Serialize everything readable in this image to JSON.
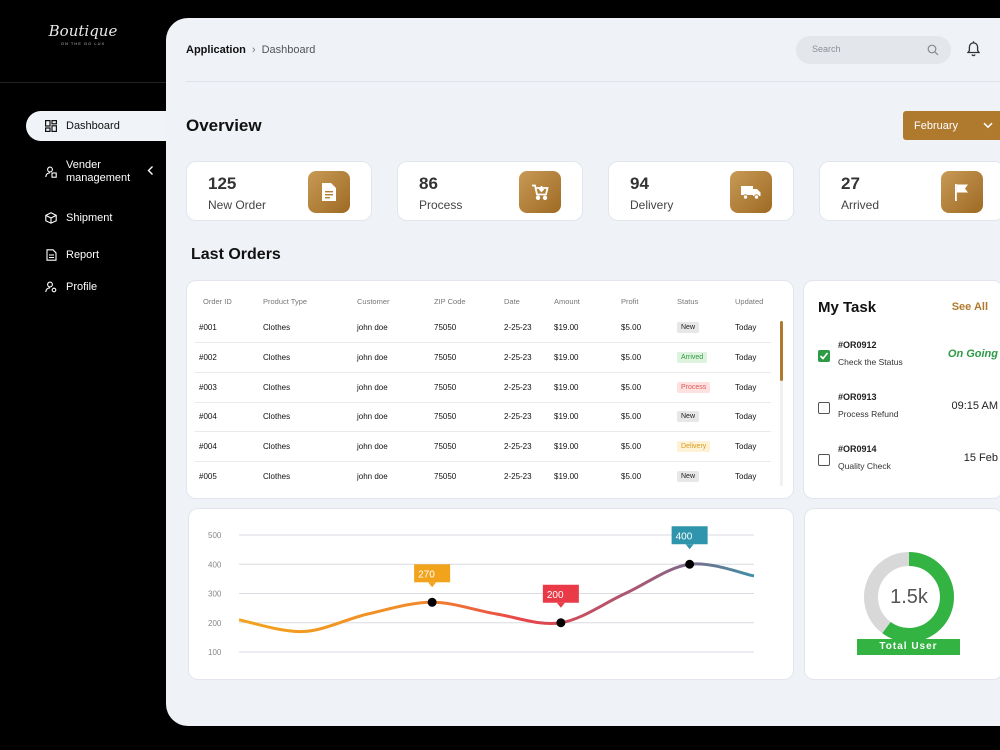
{
  "brand": {
    "name": "Boutique",
    "tagline": "ON THE GO LUX"
  },
  "sidebar": {
    "items": [
      {
        "label": "Dashboard",
        "icon": "dashboard-icon",
        "active": true
      },
      {
        "label": "Vender management",
        "icon": "vendor-icon"
      },
      {
        "label": "Shipment",
        "icon": "box-icon"
      },
      {
        "label": "Report",
        "icon": "report-icon"
      },
      {
        "label": "Profile",
        "icon": "profile-icon"
      }
    ]
  },
  "header": {
    "breadcrumb": [
      "Application",
      "Dashboard"
    ],
    "search_placeholder": "Search"
  },
  "overview": {
    "title": "Overview",
    "month": "February",
    "stats": [
      {
        "value": "125",
        "label": "New Order",
        "icon": "document-icon"
      },
      {
        "value": "86",
        "label": "Process",
        "icon": "cart-icon"
      },
      {
        "value": "94",
        "label": "Delivery",
        "icon": "truck-icon"
      },
      {
        "value": "27",
        "label": "Arrived",
        "icon": "flag-icon"
      }
    ]
  },
  "orders": {
    "title": "Last Orders",
    "columns": [
      "Order ID",
      "Product Type",
      "Customer",
      "ZIP Code",
      "Date",
      "Amount",
      "Profit",
      "Status",
      "Updated"
    ],
    "rows": [
      [
        "#001",
        "Clothes",
        "john doe",
        "75050",
        "2-25-23",
        "$19.00",
        "$5.00",
        "New",
        "Today"
      ],
      [
        "#002",
        "Clothes",
        "john doe",
        "75050",
        "2-25-23",
        "$19.00",
        "$5.00",
        "Arrived",
        "Today"
      ],
      [
        "#003",
        "Clothes",
        "john doe",
        "75050",
        "2-25-23",
        "$19.00",
        "$5.00",
        "Process",
        "Today"
      ],
      [
        "#004",
        "Clothes",
        "john doe",
        "75050",
        "2-25-23",
        "$19.00",
        "$5.00",
        "New",
        "Today"
      ],
      [
        "#004",
        "Clothes",
        "john doe",
        "75050",
        "2-25-23",
        "$19.00",
        "$5.00",
        "Delivery",
        "Today"
      ],
      [
        "#005",
        "Clothes",
        "john doe",
        "75050",
        "2-25-23",
        "$19.00",
        "$5.00",
        "New",
        "Today"
      ]
    ]
  },
  "tasks": {
    "title": "My Task",
    "see_all": "See All",
    "items": [
      {
        "id": "#OR0912",
        "desc": "Check the Status",
        "value": "On Going",
        "checked": true
      },
      {
        "id": "#OR0913",
        "desc": "Process Refund",
        "value": "09:15 AM",
        "checked": false
      },
      {
        "id": "#OR0914",
        "desc": "Quality Check",
        "value": "15 Feb",
        "checked": false
      }
    ]
  },
  "chart_data": {
    "type": "line",
    "y_ticks": [
      500,
      400,
      300,
      200,
      100
    ],
    "ylim": [
      100,
      500
    ],
    "x": [
      0,
      1,
      2,
      3,
      4,
      5,
      6,
      7,
      8
    ],
    "values": [
      210,
      170,
      230,
      270,
      230,
      200,
      300,
      400,
      360
    ],
    "annotations": [
      {
        "x": 3,
        "value": 270,
        "label": "270",
        "color": "#f2a31c"
      },
      {
        "x": 5,
        "value": 200,
        "label": "200",
        "color": "#ea3a48"
      },
      {
        "x": 7,
        "value": 400,
        "label": "400",
        "color": "#2e95ad"
      }
    ],
    "grid": true
  },
  "total_user": {
    "value": "1.5k",
    "label": "Total User",
    "fraction": 0.6,
    "color": "#33b342",
    "rest_color": "#d8d8d8"
  }
}
